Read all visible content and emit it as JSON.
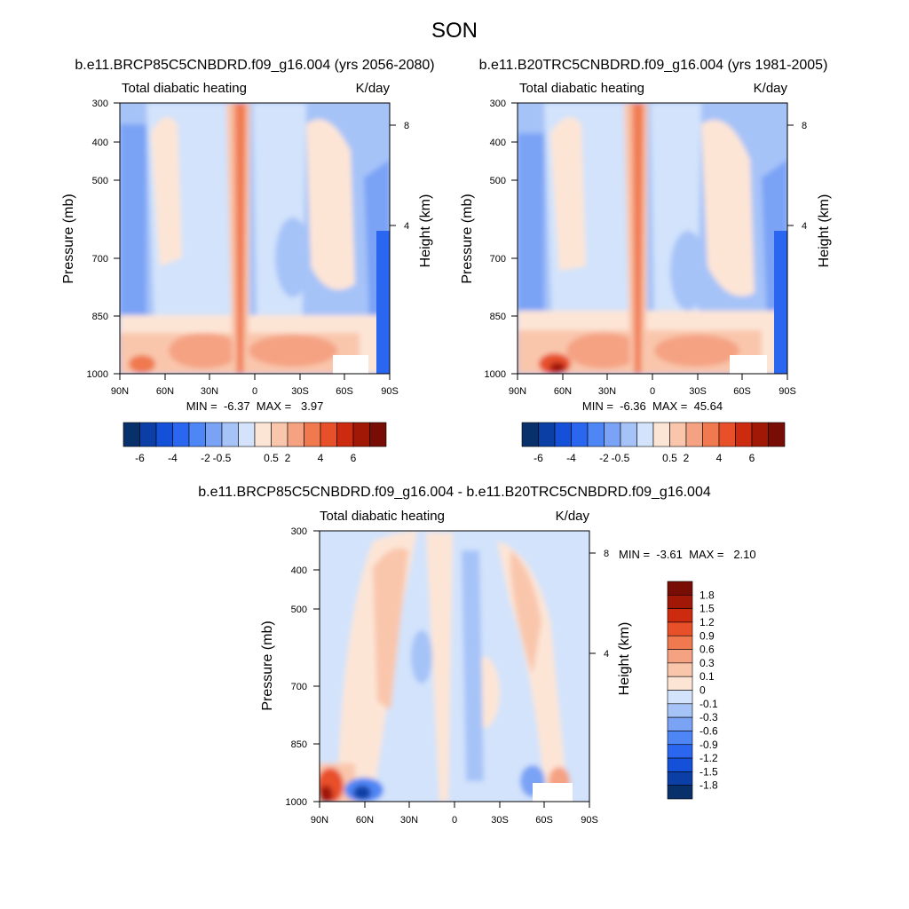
{
  "page": {
    "title": "SON"
  },
  "colors": {
    "diverging": [
      "#08306b",
      "#0b3fa6",
      "#1451d8",
      "#2a66f0",
      "#4f86f5",
      "#7aa2f5",
      "#a6c3f8",
      "#d2e3fb",
      "#fde5d6",
      "#f9c6ac",
      "#f5a283",
      "#f0794f",
      "#e8502a",
      "#cd2b10",
      "#a11807",
      "#770d05"
    ],
    "plate_ocean_dark": "#2a66f0"
  },
  "chart_data": [
    {
      "id": "future",
      "type": "contour",
      "title": "b.e11.BRCP85C5CNBDRD.f09_g16.004 (yrs 2056-2080)",
      "left_label": "Total diabatic heating",
      "right_label": "K/day",
      "ylabel": "Pressure (mb)",
      "y2label": "Height (km)",
      "x_ticks": [
        "90N",
        "60N",
        "30N",
        "0",
        "30S",
        "60S",
        "90S"
      ],
      "y_ticks": [
        "300",
        "400",
        "500",
        "700",
        "850",
        "1000"
      ],
      "y2_ticks": [
        "8",
        "4"
      ],
      "ylim": [
        1000,
        300
      ],
      "stats": "MIN =  -6.37  MAX =   3.97",
      "levels": [
        -6,
        -5,
        -4,
        -3,
        -2,
        -1,
        -0.5,
        0,
        0.5,
        1,
        2,
        3,
        4,
        5,
        6
      ],
      "colorbar_labels": [
        "-6",
        "-4",
        "-2",
        "-0.5",
        "0.5",
        "2",
        "4",
        "6"
      ]
    },
    {
      "id": "present",
      "type": "contour",
      "title": "b.e11.B20TRC5CNBDRD.f09_g16.004 (yrs 1981-2005)",
      "left_label": "Total diabatic heating",
      "right_label": "K/day",
      "ylabel": "Pressure (mb)",
      "y2label": "Height (km)",
      "x_ticks": [
        "90N",
        "60N",
        "30N",
        "0",
        "30S",
        "60S",
        "90S"
      ],
      "y_ticks": [
        "300",
        "400",
        "500",
        "700",
        "850",
        "1000"
      ],
      "y2_ticks": [
        "8",
        "4"
      ],
      "ylim": [
        1000,
        300
      ],
      "stats": "MIN =  -6.36  MAX =  45.64",
      "levels": [
        -6,
        -5,
        -4,
        -3,
        -2,
        -1,
        -0.5,
        0,
        0.5,
        1,
        2,
        3,
        4,
        5,
        6
      ],
      "colorbar_labels": [
        "-6",
        "-4",
        "-2",
        "-0.5",
        "0.5",
        "2",
        "4",
        "6"
      ]
    },
    {
      "id": "difference",
      "type": "contour",
      "title": "b.e11.BRCP85C5CNBDRD.f09_g16.004 - b.e11.B20TRC5CNBDRD.f09_g16.004",
      "left_label": "Total diabatic heating",
      "right_label": "K/day",
      "ylabel": "Pressure (mb)",
      "y2label": "Height (km)",
      "x_ticks": [
        "90N",
        "60N",
        "30N",
        "0",
        "30S",
        "60S",
        "90S"
      ],
      "y_ticks": [
        "300",
        "400",
        "500",
        "700",
        "850",
        "1000"
      ],
      "y2_ticks": [
        "8",
        "4"
      ],
      "ylim": [
        1000,
        300
      ],
      "stats": "MIN =  -3.61  MAX =   2.10",
      "levels": [
        -1.8,
        -1.5,
        -1.2,
        -0.9,
        -0.6,
        -0.3,
        -0.1,
        0,
        0.1,
        0.3,
        0.6,
        0.9,
        1.2,
        1.5,
        1.8
      ],
      "colorbar_labels": [
        "1.8",
        "1.5",
        "1.2",
        "0.9",
        "0.6",
        "0.3",
        "0.1",
        "0",
        "-0.1",
        "-0.3",
        "-0.6",
        "-0.9",
        "-1.2",
        "-1.5",
        "-1.8"
      ]
    }
  ]
}
